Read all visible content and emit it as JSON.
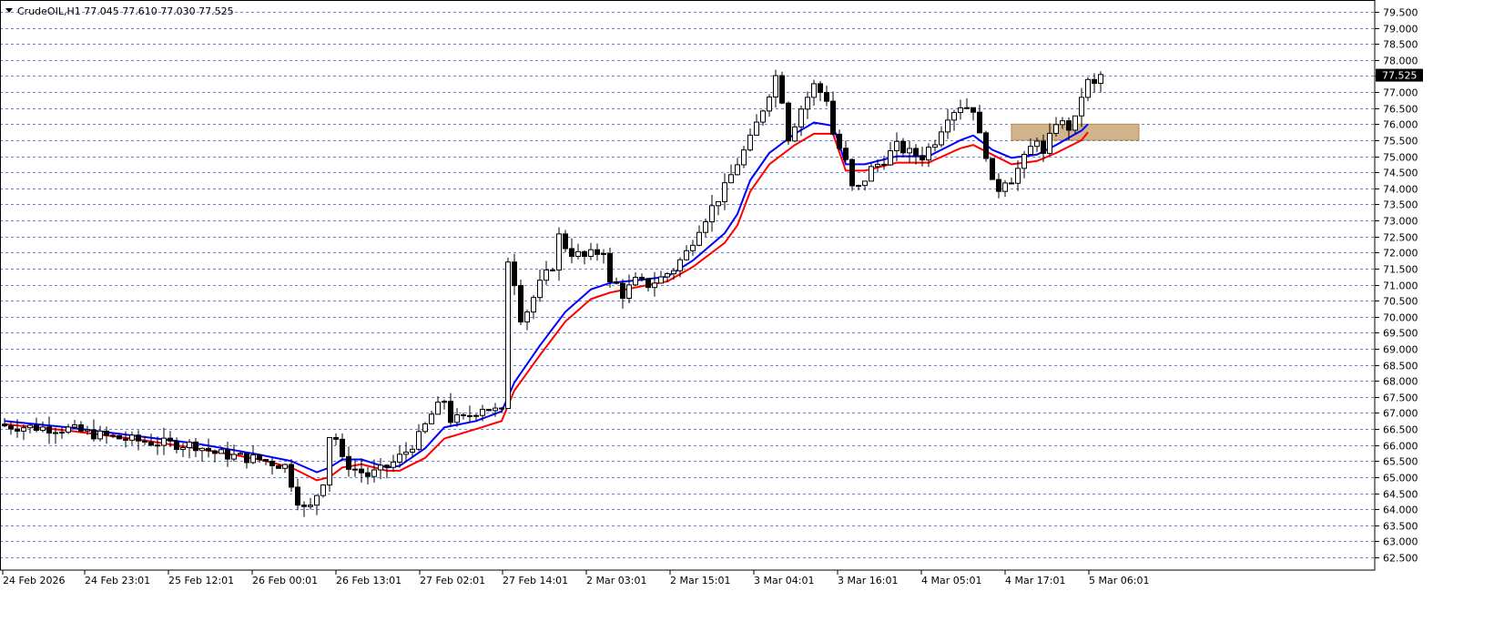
{
  "chart_data": {
    "type": "candlestick",
    "symbol": "CrudeOIL,H1",
    "ohlc": "77.045 77.610 77.030 77.525",
    "title": "CrudeOIL,H1 77.045 77.610 77.030 77.525",
    "ylim": [
      62.3,
      79.8
    ],
    "grid": true,
    "grid_style": "dashed",
    "y_ticks": [
      79.5,
      79.0,
      78.5,
      78.0,
      77.5,
      77.0,
      76.5,
      76.0,
      75.5,
      75.0,
      74.5,
      74.0,
      73.5,
      73.0,
      72.5,
      72.0,
      71.5,
      71.0,
      70.5,
      70.0,
      69.5,
      69.0,
      68.5,
      68.0,
      67.5,
      67.0,
      66.5,
      66.0,
      65.5,
      65.0,
      64.5,
      64.0,
      63.5,
      63.0,
      62.5
    ],
    "y_tick_labels": [
      "79.500",
      "79.000",
      "78.500",
      "78.000",
      "77.500",
      "77.000",
      "76.500",
      "76.000",
      "75.500",
      "75.000",
      "74.500",
      "74.000",
      "73.500",
      "73.000",
      "72.500",
      "72.000",
      "71.500",
      "71.000",
      "70.500",
      "70.000",
      "69.500",
      "69.000",
      "68.500",
      "68.000",
      "67.500",
      "67.000",
      "66.500",
      "66.000",
      "65.500",
      "65.000",
      "64.500",
      "64.000",
      "63.500",
      "63.000",
      "62.500"
    ],
    "x_tick_labels": [
      "24 Feb 2026",
      "24 Feb 23:01",
      "25 Feb 12:01",
      "26 Feb 00:01",
      "26 Feb 13:01",
      "27 Feb 02:01",
      "27 Feb 14:01",
      "2 Mar 03:01",
      "2 Mar 15:01",
      "3 Mar 04:01",
      "3 Mar 16:01",
      "4 Mar 05:01",
      "4 Mar 17:01",
      "5 Mar 06:01"
    ],
    "close_path_key": [
      [
        0,
        66.6
      ],
      [
        5,
        66.55
      ],
      [
        10,
        66.5
      ],
      [
        15,
        66.3
      ],
      [
        20,
        66.15
      ],
      [
        25,
        66.05
      ],
      [
        30,
        66.0
      ],
      [
        33,
        65.75
      ],
      [
        36,
        65.65
      ],
      [
        40,
        65.55
      ],
      [
        44,
        65.35
      ],
      [
        46,
        64.3
      ],
      [
        47,
        64.0
      ],
      [
        48,
        64.05
      ],
      [
        50,
        64.9
      ],
      [
        51,
        66.3
      ],
      [
        52,
        66.2
      ],
      [
        53,
        65.5
      ],
      [
        55,
        65.25
      ],
      [
        57,
        65.05
      ],
      [
        59,
        65.2
      ],
      [
        61,
        65.45
      ],
      [
        63,
        65.8
      ],
      [
        65,
        66.25
      ],
      [
        67,
        66.95
      ],
      [
        69,
        67.4
      ],
      [
        70,
        66.8
      ],
      [
        72,
        66.8
      ],
      [
        75,
        67.2
      ],
      [
        78,
        67.0
      ],
      [
        79,
        71.8
      ],
      [
        80,
        71.1
      ],
      [
        81,
        70.0
      ],
      [
        82,
        70.2
      ],
      [
        84,
        71.0
      ],
      [
        86,
        71.6
      ],
      [
        87,
        72.5
      ],
      [
        88,
        72.2
      ],
      [
        89,
        72.0
      ],
      [
        91,
        71.85
      ],
      [
        93,
        72.0
      ],
      [
        94,
        72.1
      ],
      [
        95,
        71.0
      ],
      [
        96,
        71.0
      ],
      [
        97,
        70.7
      ],
      [
        99,
        71.1
      ],
      [
        101,
        71.0
      ],
      [
        103,
        71.2
      ],
      [
        105,
        71.5
      ],
      [
        107,
        72.0
      ],
      [
        109,
        72.8
      ],
      [
        111,
        73.4
      ],
      [
        113,
        74.0
      ],
      [
        115,
        74.8
      ],
      [
        117,
        75.5
      ],
      [
        119,
        76.5
      ],
      [
        121,
        77.5
      ],
      [
        122,
        76.8
      ],
      [
        123,
        75.6
      ],
      [
        125,
        76.5
      ],
      [
        127,
        77.2
      ],
      [
        129,
        76.8
      ],
      [
        130,
        75.7
      ],
      [
        132,
        74.8
      ],
      [
        133,
        74.0
      ],
      [
        134,
        74.0
      ],
      [
        136,
        74.6
      ],
      [
        138,
        74.9
      ],
      [
        140,
        75.3
      ],
      [
        142,
        75.1
      ],
      [
        144,
        75.0
      ],
      [
        146,
        75.5
      ],
      [
        148,
        76.3
      ],
      [
        150,
        76.6
      ],
      [
        152,
        76.5
      ],
      [
        153,
        75.6
      ],
      [
        154,
        75.1
      ],
      [
        155,
        74.1
      ],
      [
        156,
        74.0
      ],
      [
        157,
        74.3
      ],
      [
        158,
        74.3
      ],
      [
        160,
        74.9
      ],
      [
        162,
        75.6
      ],
      [
        163,
        75.0
      ],
      [
        165,
        76.1
      ],
      [
        166,
        76.0
      ],
      [
        167,
        75.9
      ],
      [
        168,
        76.1
      ],
      [
        169,
        76.9
      ],
      [
        170,
        77.3
      ],
      [
        171,
        77.2
      ],
      [
        172,
        77.525
      ]
    ],
    "ma_fast_color": "#0000ff",
    "ma_slow_color": "#ff0000",
    "ma_fast_key": [
      [
        0,
        66.75
      ],
      [
        10,
        66.55
      ],
      [
        20,
        66.3
      ],
      [
        30,
        66.05
      ],
      [
        40,
        65.7
      ],
      [
        45,
        65.5
      ],
      [
        49,
        65.15
      ],
      [
        51,
        65.3
      ],
      [
        53,
        65.55
      ],
      [
        56,
        65.55
      ],
      [
        60,
        65.3
      ],
      [
        62,
        65.35
      ],
      [
        66,
        65.9
      ],
      [
        69,
        66.55
      ],
      [
        74,
        66.75
      ],
      [
        78,
        67.05
      ],
      [
        80,
        67.95
      ],
      [
        84,
        69.1
      ],
      [
        88,
        70.15
      ],
      [
        92,
        70.85
      ],
      [
        95,
        71.05
      ],
      [
        100,
        71.15
      ],
      [
        104,
        71.25
      ],
      [
        108,
        71.75
      ],
      [
        113,
        72.6
      ],
      [
        115,
        73.2
      ],
      [
        117,
        74.25
      ],
      [
        120,
        75.1
      ],
      [
        124,
        75.7
      ],
      [
        127,
        76.05
      ],
      [
        130,
        75.95
      ],
      [
        132,
        74.75
      ],
      [
        135,
        74.75
      ],
      [
        140,
        75.0
      ],
      [
        145,
        75.0
      ],
      [
        150,
        75.5
      ],
      [
        152,
        75.65
      ],
      [
        155,
        75.2
      ],
      [
        158,
        74.95
      ],
      [
        162,
        75.05
      ],
      [
        165,
        75.35
      ],
      [
        169,
        75.8
      ],
      [
        170,
        76.0
      ]
    ],
    "ma_slow_key": [
      [
        0,
        66.65
      ],
      [
        10,
        66.45
      ],
      [
        20,
        66.2
      ],
      [
        30,
        65.9
      ],
      [
        40,
        65.55
      ],
      [
        45,
        65.3
      ],
      [
        49,
        64.9
      ],
      [
        51,
        65.0
      ],
      [
        53,
        65.3
      ],
      [
        56,
        65.4
      ],
      [
        60,
        65.2
      ],
      [
        62,
        65.2
      ],
      [
        66,
        65.6
      ],
      [
        69,
        66.2
      ],
      [
        74,
        66.5
      ],
      [
        78,
        66.75
      ],
      [
        80,
        67.7
      ],
      [
        84,
        68.8
      ],
      [
        88,
        69.85
      ],
      [
        92,
        70.55
      ],
      [
        95,
        70.75
      ],
      [
        100,
        70.95
      ],
      [
        104,
        71.1
      ],
      [
        108,
        71.55
      ],
      [
        113,
        72.3
      ],
      [
        115,
        72.85
      ],
      [
        117,
        73.9
      ],
      [
        120,
        74.75
      ],
      [
        124,
        75.35
      ],
      [
        127,
        75.7
      ],
      [
        130,
        75.7
      ],
      [
        132,
        74.55
      ],
      [
        135,
        74.55
      ],
      [
        140,
        74.8
      ],
      [
        145,
        74.8
      ],
      [
        150,
        75.25
      ],
      [
        152,
        75.35
      ],
      [
        155,
        75.05
      ],
      [
        158,
        74.75
      ],
      [
        162,
        74.85
      ],
      [
        165,
        75.1
      ],
      [
        169,
        75.5
      ],
      [
        170,
        75.75
      ]
    ],
    "zone": {
      "y_top": 76.0,
      "y_bottom": 75.5,
      "from_bar": 158,
      "to_bar": 178,
      "color": "#d2b48c"
    }
  }
}
